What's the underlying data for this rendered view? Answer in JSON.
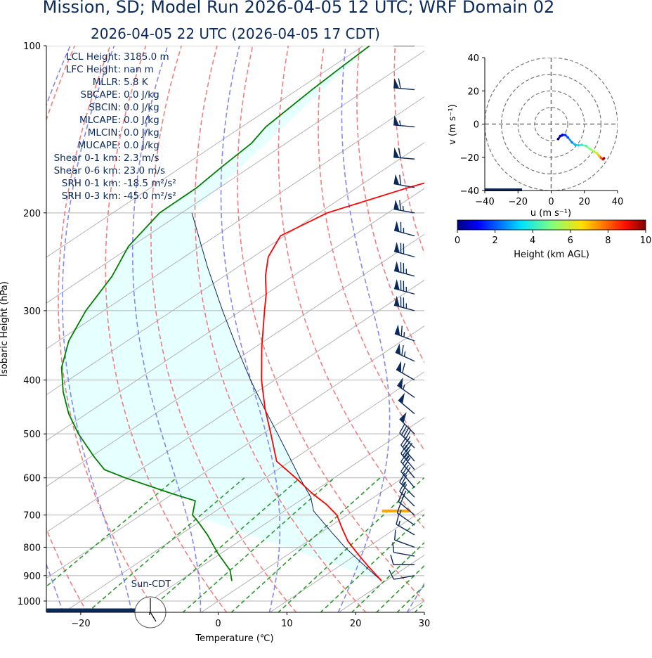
{
  "title": "Mission, SD; Model Run 2026-04-05 12 UTC; WRF Domain 02",
  "subtitle": "2026-04-05 22 UTC  (2026-04-05 17 CDT)",
  "stats": [
    {
      "label": "LCL Height:",
      "value": "3185.0 m"
    },
    {
      "label": "LFC Height:",
      "value": "nan m"
    },
    {
      "label": "MLLR:",
      "value": "5.8 K"
    },
    {
      "label": "SBCAPE:",
      "value": "0.0 J/kg"
    },
    {
      "label": "SBCIN:",
      "value": "0.0 J/kg"
    },
    {
      "label": "MLCAPE:",
      "value": "0.0 J/kg"
    },
    {
      "label": "MLCIN:",
      "value": "0.0 J/kg"
    },
    {
      "label": "MUCAPE:",
      "value": "0.0 J/kg"
    },
    {
      "label": "Shear 0-1 km:",
      "value": "2.3 m/s"
    },
    {
      "label": "Shear 0-6 km:",
      "value": "23.0 m/s"
    },
    {
      "label": "SRH 0-1 km:",
      "value": "-18.5 m²/s²"
    },
    {
      "label": "SRH 0-3 km:",
      "value": "-45.0 m²/s²"
    }
  ],
  "sun_label": "Sun-CDT",
  "colors": {
    "temperature": "#ff0000",
    "dewpoint": "#008000",
    "parcel": "#0b2a5c",
    "dry_adiabat": "#f06a6a",
    "moist_adiabat": "#7a7af0",
    "mixing_ratio": "#2a9a2a",
    "cape_fill": "#e6ffff",
    "lcl": "#ffa500",
    "text": "#0b2a5c"
  },
  "chart_data": [
    {
      "type": "line",
      "title": "",
      "xlabel": "Temperature (℃)",
      "ylabel": "Isobaric Height (hPa)",
      "xlim": [
        -25,
        30
      ],
      "ylim": [
        1050,
        100
      ],
      "yscale": "log",
      "skew": true,
      "xticks": [
        -20,
        -10,
        0,
        10,
        20,
        30
      ],
      "xtick_labels": [
        "−20",
        "",
        "0",
        "10",
        "20",
        "30"
      ],
      "yticks": [
        100,
        200,
        300,
        400,
        500,
        600,
        700,
        800,
        900,
        1000
      ],
      "ytick_labels": [
        "100",
        "200",
        "300",
        "400",
        "500",
        "600",
        "700",
        "800",
        "900",
        "1000"
      ],
      "lcl_pressure": 688,
      "lcl_temperature": 6.2,
      "series": [
        {
          "key": "temperature",
          "pressure": [
            920,
            860,
            820,
            780,
            740,
            700,
            670,
            640,
            600,
            560,
            500,
            450,
            400,
            350,
            300,
            280,
            260,
            240,
            220,
            200,
            180,
            160,
            140,
            120,
            110,
            100
          ],
          "values": [
            19.4,
            13.7,
            9.8,
            5.8,
            2.2,
            -1.5,
            -5.3,
            -9.8,
            -15.6,
            -22.0,
            -28.8,
            -35.2,
            -41.9,
            -48.9,
            -56.6,
            -60.0,
            -64.0,
            -67.8,
            -70.6,
            -68.8,
            -62.5,
            -54.0,
            -43.7,
            -33.9,
            -26.3,
            -20.3
          ]
        },
        {
          "key": "dewpoint",
          "pressure": [
            920,
            880,
            820,
            760,
            720,
            700,
            660,
            640,
            600,
            580,
            550,
            500,
            460,
            420,
            380,
            340,
            300,
            260,
            230,
            200,
            180,
            165,
            150,
            140,
            120,
            110,
            100
          ],
          "values": [
            -2.4,
            -5.0,
            -10.5,
            -16.0,
            -20.2,
            -22.5,
            -25.2,
            -30.3,
            -40.4,
            -45.2,
            -49.5,
            -56.8,
            -62.6,
            -68.2,
            -73.7,
            -78.5,
            -82.6,
            -86.3,
            -90.4,
            -93.2,
            -93.3,
            -94.2,
            -95.0,
            -96.5,
            -97.9,
            -98.5,
            -99.1
          ]
        },
        {
          "key": "parcel",
          "pressure": [
            920,
            860,
            800,
            750,
            700,
            688,
            650,
            600,
            550,
            500,
            450,
            400,
            350,
            300,
            250,
            200
          ],
          "values": [
            19.4,
            13.2,
            6.7,
            1.3,
            -4.4,
            -5.8,
            -9.2,
            -15.0,
            -21.1,
            -27.8,
            -35.3,
            -43.5,
            -52.5,
            -62.7,
            -74.5,
            -88.5
          ]
        }
      ],
      "wind_barbs": {
        "pressure": [
          100,
          120,
          140,
          160,
          180,
          200,
          220,
          240,
          260,
          280,
          300,
          340,
          370,
          400,
          430,
          460,
          500,
          530,
          560,
          580,
          600,
          625,
          650,
          675,
          700,
          730,
          760,
          800,
          830,
          860,
          900
        ],
        "speed_kt": [
          60,
          60,
          55,
          60,
          60,
          65,
          65,
          70,
          75,
          75,
          75,
          65,
          65,
          60,
          55,
          50,
          50,
          45,
          40,
          35,
          30,
          30,
          25,
          25,
          20,
          15,
          15,
          10,
          10,
          10,
          10
        ],
        "direction_deg": [
          270,
          275,
          275,
          275,
          280,
          280,
          285,
          285,
          285,
          285,
          285,
          290,
          295,
          300,
          305,
          310,
          315,
          315,
          320,
          320,
          320,
          320,
          315,
          315,
          310,
          305,
          300,
          290,
          280,
          270,
          260
        ]
      }
    },
    {
      "type": "scatter",
      "title": "",
      "xlabel": "u (m s⁻¹)",
      "ylabel": "v (m s⁻¹)",
      "xlim": [
        -40,
        40
      ],
      "ylim": [
        -40,
        40
      ],
      "xticks": [
        -40,
        -20,
        0,
        20,
        40
      ],
      "yticks": [
        -40,
        -20,
        0,
        20,
        40
      ],
      "xtick_labels": [
        "−40",
        "−20",
        "0",
        "20",
        "40"
      ],
      "ytick_labels": [
        "−40",
        "−20",
        "0",
        "20",
        "40"
      ],
      "rings": [
        10,
        20,
        30,
        40
      ],
      "hodograph": {
        "u": [
          4.2,
          5.5,
          6.8,
          8.5,
          10.0,
          12.5,
          14.5,
          16.5,
          18.5,
          21.0,
          23.5,
          25.8,
          27.5,
          28.8,
          30.0,
          31.2,
          31.8
        ],
        "v": [
          -9.0,
          -7.2,
          -6.5,
          -6.6,
          -8.0,
          -11.0,
          -12.5,
          -12.8,
          -12.5,
          -13.2,
          -15.0,
          -16.5,
          -17.5,
          -19.0,
          -20.3,
          -21.2,
          -20.6
        ],
        "height_km": [
          0.0,
          0.5,
          1.0,
          1.5,
          2.0,
          2.5,
          3.0,
          3.5,
          4.0,
          4.5,
          5.0,
          5.5,
          6.0,
          7.0,
          8.0,
          9.0,
          10.0
        ]
      },
      "colorbar": {
        "label": "Height (km AGL)",
        "ticks": [
          "0",
          "2",
          "4",
          "6",
          "8",
          "10"
        ],
        "range": [
          0,
          10
        ]
      }
    }
  ]
}
